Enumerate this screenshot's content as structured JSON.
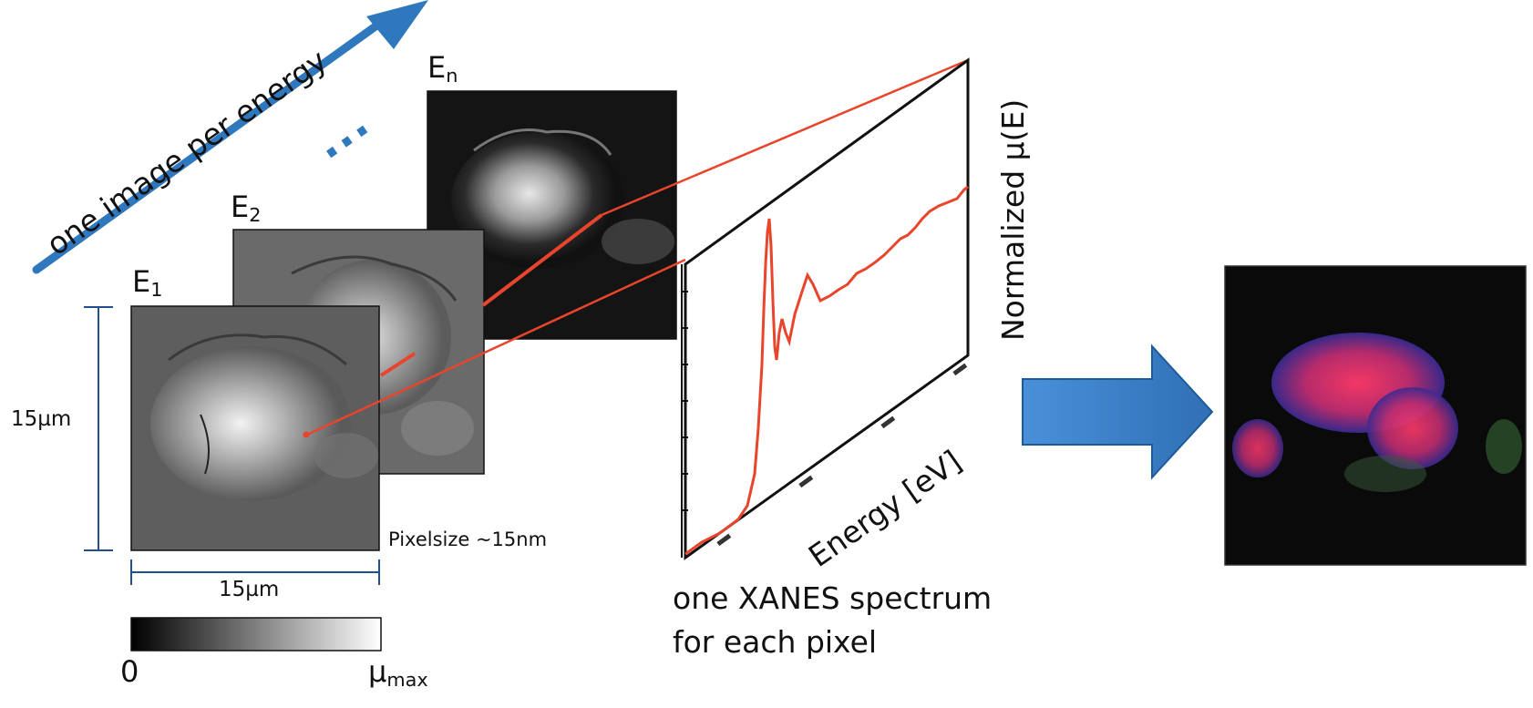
{
  "arrow_label": "one image per energy",
  "ellipsis": "...",
  "energy_labels": {
    "e1": {
      "base": "E",
      "sub": "1"
    },
    "e2": {
      "base": "E",
      "sub": "2"
    },
    "en": {
      "base": "E",
      "sub": "n"
    }
  },
  "scale": {
    "height": "15µm",
    "width": "15µm",
    "pixelsize": "Pixelsize ~15nm"
  },
  "colorbar": {
    "min": "0",
    "max_base": "µ",
    "max_sub": "max"
  },
  "spectrum": {
    "ylabel": "Normalized µ(E)",
    "xlabel": "Energy [eV]",
    "caption_line1": "one XANES spectrum",
    "caption_line2": "for each pixel"
  },
  "colors": {
    "blue_arrow": "#2f78bd",
    "red_line": "#e8452c",
    "scale_blue": "#20508f"
  }
}
